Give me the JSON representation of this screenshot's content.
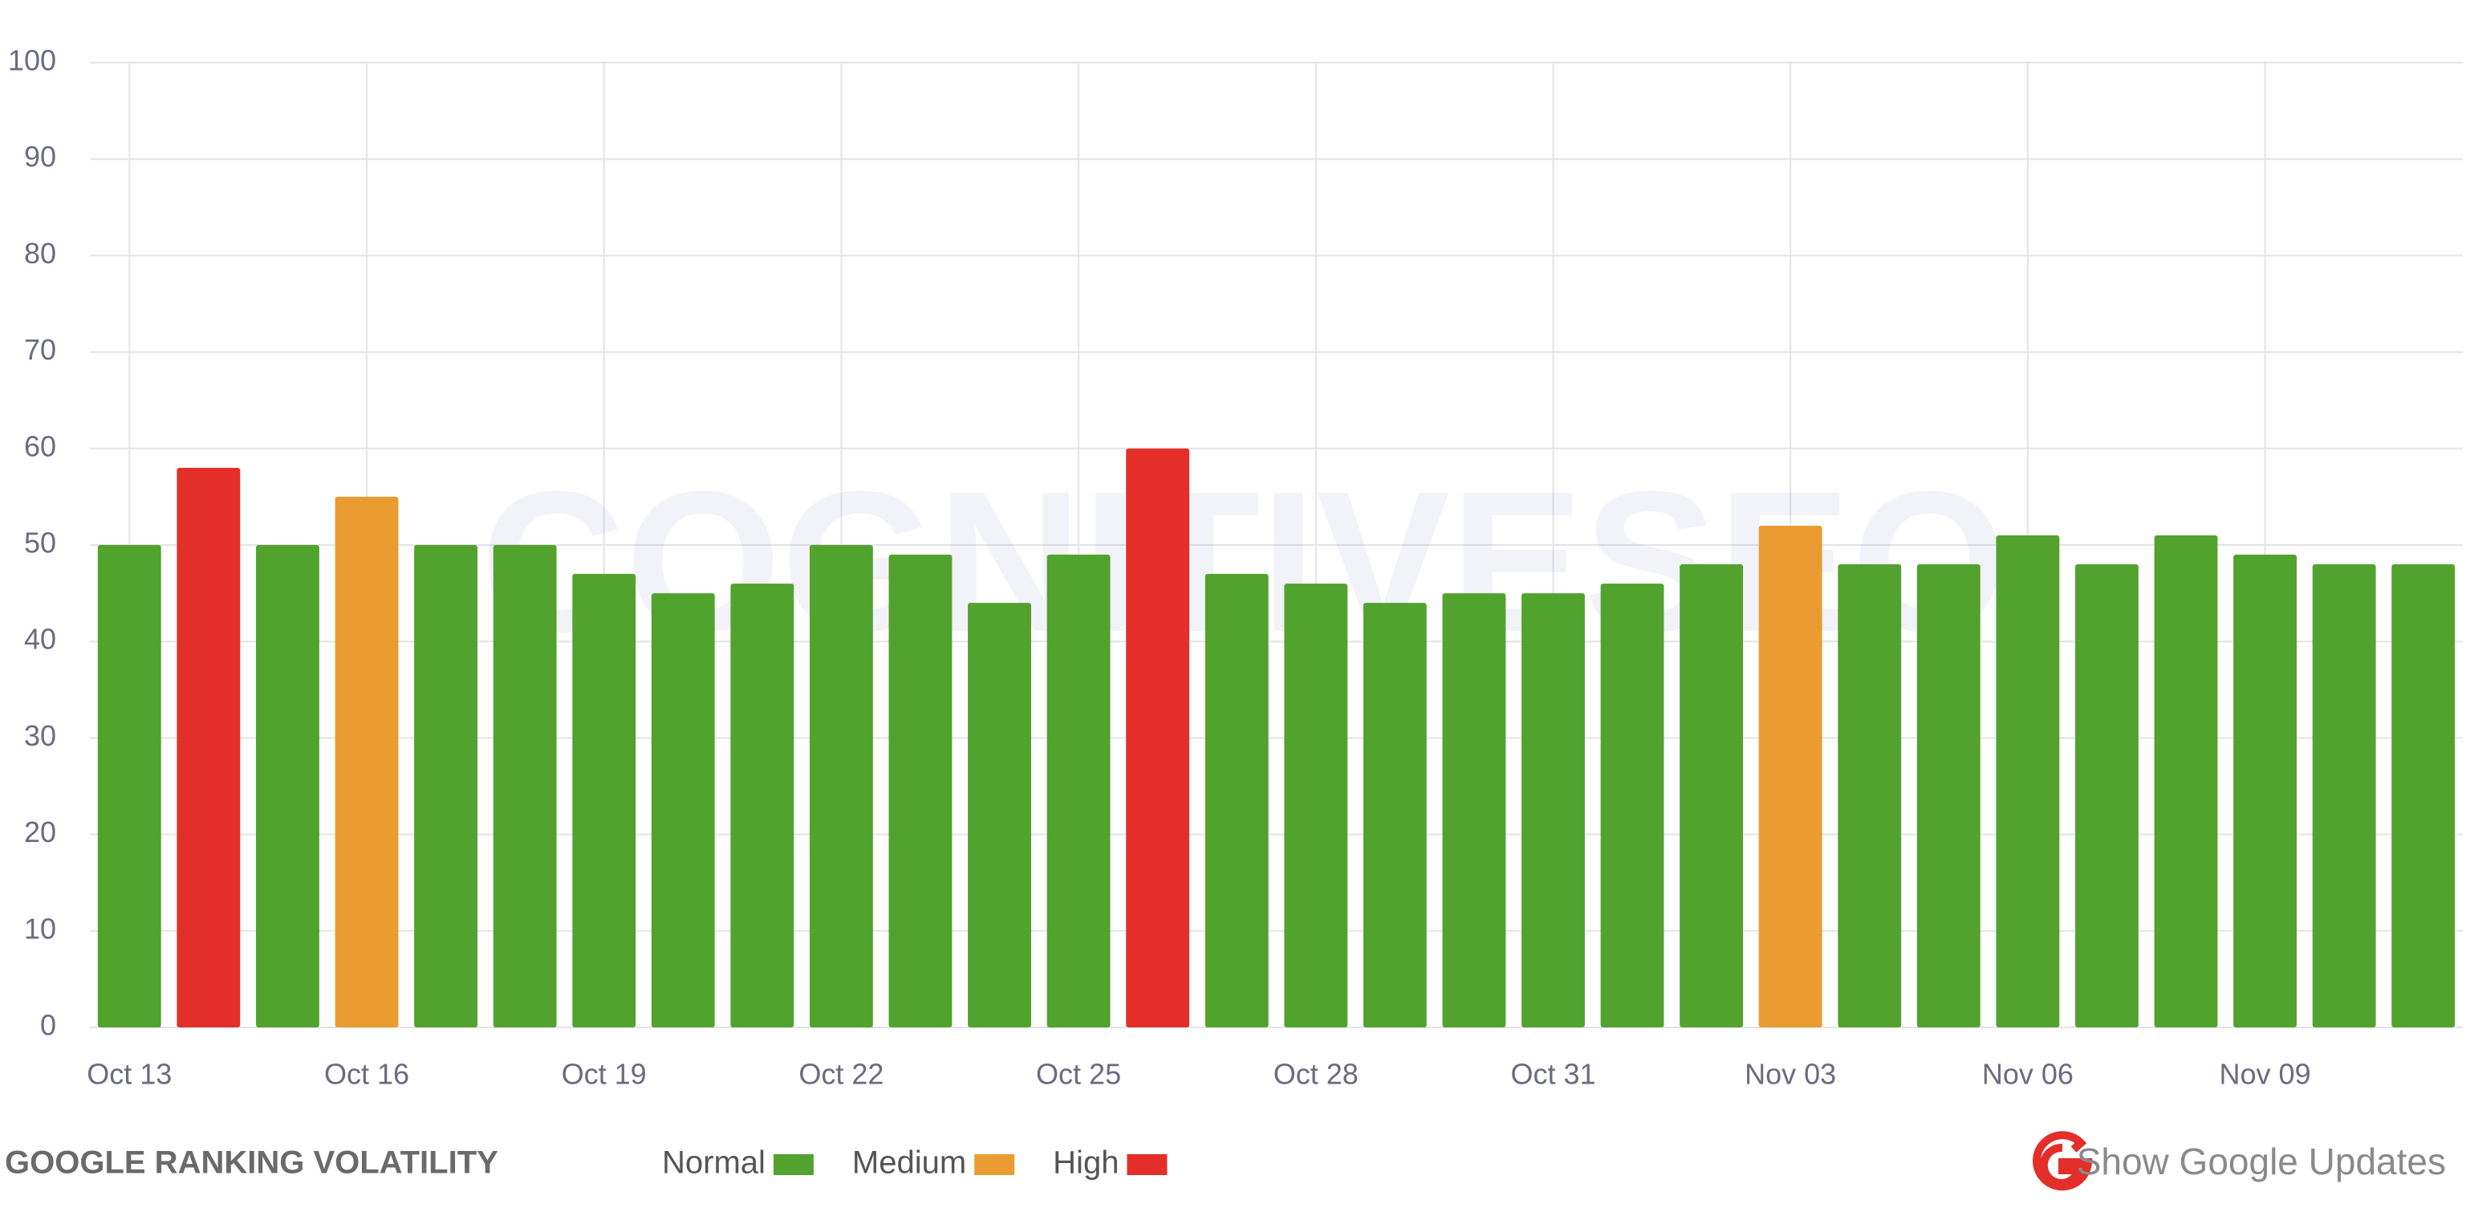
{
  "chart_data": {
    "type": "bar",
    "title": "GOOGLE RANKING VOLATILITY",
    "watermark": "COGNITIVESEO",
    "button": "Show Google Updates",
    "categories": [
      "Oct 13",
      null,
      null,
      "Oct 16",
      null,
      null,
      "Oct 19",
      null,
      null,
      "Oct 22",
      null,
      null,
      "Oct 25",
      null,
      null,
      "Oct 28",
      null,
      null,
      "Oct 31",
      null,
      null,
      "Nov 03",
      null,
      null,
      "Nov 06",
      null,
      null,
      "Nov 09",
      null,
      null
    ],
    "series": [
      {
        "name": "Normal",
        "color": "#52a22e",
        "values": [
          50,
          null,
          50,
          null,
          50,
          50,
          47,
          45,
          46,
          50,
          49,
          44,
          49,
          null,
          47,
          46,
          44,
          45,
          45,
          46,
          48,
          null,
          48,
          48,
          51,
          48,
          51,
          49,
          48,
          48
        ]
      },
      {
        "name": "Medium",
        "color": "#ea9c33",
        "values": [
          null,
          null,
          null,
          55,
          null,
          null,
          null,
          null,
          null,
          null,
          null,
          null,
          null,
          null,
          null,
          null,
          null,
          null,
          null,
          null,
          null,
          52,
          null,
          null,
          null,
          null,
          null,
          null,
          null,
          null
        ]
      },
      {
        "name": "High",
        "color": "#e32e29",
        "values": [
          null,
          58,
          null,
          null,
          null,
          null,
          null,
          null,
          null,
          null,
          null,
          null,
          null,
          60,
          null,
          null,
          null,
          null,
          null,
          null,
          null,
          null,
          null,
          null,
          null,
          null,
          null,
          null,
          null,
          null
        ]
      }
    ],
    "ylim": [
      0,
      100
    ],
    "yticks": [
      0,
      10,
      20,
      30,
      40,
      50,
      60,
      70,
      80,
      90,
      100
    ],
    "grid": true
  }
}
